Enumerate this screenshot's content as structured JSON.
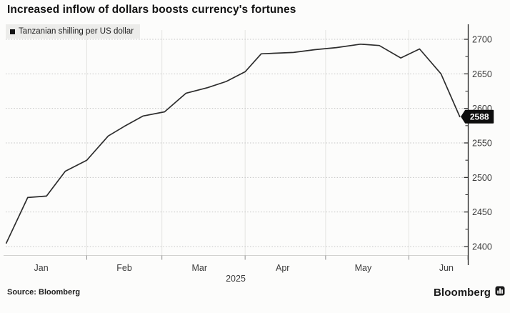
{
  "title": "Increased inflow of dollars boosts currency's fortunes",
  "legend": {
    "label": "Tanzanian shilling per US dollar",
    "swatch_color": "#141414"
  },
  "source": "Source: Bloomberg",
  "branding": {
    "logo_text": "Bloomberg",
    "logo_mark": "bloomberg-bars-icon"
  },
  "colors": {
    "background": "#fcfcfb",
    "line": "#2d2d2d",
    "h_grid": "#c4c4c4",
    "v_grid": "#e4e4e2",
    "y_axis": "#262626",
    "x_axis": "#d2d2d0",
    "x_tick": "#8f8f8f",
    "tick_label": "#3c3c3c",
    "badge_bg": "#0e0e0e",
    "badge_text": "#ffffff"
  },
  "chart_data": {
    "type": "line",
    "title": "Increased inflow of dollars boosts currency's fortunes",
    "legend_entries": [
      "Tanzanian shilling per US dollar"
    ],
    "legend_position": "top-left",
    "grid": true,
    "end_label": "2588",
    "x_axis": {
      "tick_labels": [
        "Jan",
        "Feb",
        "Mar",
        "Apr",
        "May",
        "Jun"
      ],
      "year_label": "2025",
      "range": [
        "2025-01-01",
        "2025-06-23"
      ]
    },
    "y_axis": {
      "side": "right",
      "range": [
        2400,
        2700
      ],
      "ticks": [
        2400,
        2450,
        2500,
        2550,
        2600,
        2650,
        2700
      ],
      "minor_step": 25
    },
    "series": [
      {
        "name": "Tanzanian shilling per US dollar",
        "points": [
          [
            "2025-01-02",
            2405
          ],
          [
            "2025-01-10",
            2471
          ],
          [
            "2025-01-17",
            2473
          ],
          [
            "2025-01-24",
            2509
          ],
          [
            "2025-02-01",
            2525
          ],
          [
            "2025-02-09",
            2560
          ],
          [
            "2025-02-15",
            2574
          ],
          [
            "2025-02-22",
            2589
          ],
          [
            "2025-03-02",
            2595
          ],
          [
            "2025-03-10",
            2622
          ],
          [
            "2025-03-18",
            2630
          ],
          [
            "2025-03-25",
            2639
          ],
          [
            "2025-04-01",
            2653
          ],
          [
            "2025-04-07",
            2679
          ],
          [
            "2025-04-19",
            2681
          ],
          [
            "2025-04-27",
            2685
          ],
          [
            "2025-05-05",
            2688
          ],
          [
            "2025-05-14",
            2693
          ],
          [
            "2025-05-21",
            2691
          ],
          [
            "2025-05-29",
            2673
          ],
          [
            "2025-06-05",
            2686
          ],
          [
            "2025-06-13",
            2650
          ],
          [
            "2025-06-20",
            2588
          ]
        ]
      }
    ]
  }
}
